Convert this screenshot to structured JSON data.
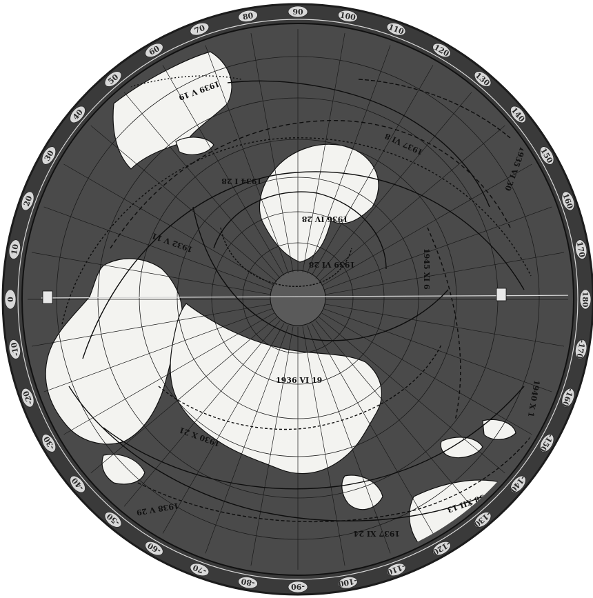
{
  "map": {
    "colors": {
      "ocean": "#4a4a4a",
      "land": "#f3f3f0",
      "bezel": "#3a3a3a",
      "bezel_ticks": "#d8d8d8",
      "path": "#0d0d0d",
      "grid": "#222222"
    },
    "rim_labels": [
      {
        "text": "0",
        "angle": 180
      },
      {
        "text": "-10",
        "angle": 170
      },
      {
        "text": "-20",
        "angle": 160
      },
      {
        "text": "-30",
        "angle": 150
      },
      {
        "text": "-40",
        "angle": 140
      },
      {
        "text": "-50",
        "angle": 130
      },
      {
        "text": "-60",
        "angle": 120
      },
      {
        "text": "-70",
        "angle": 110
      },
      {
        "text": "-80",
        "angle": 100
      },
      {
        "text": "-90",
        "angle": 90
      },
      {
        "text": "-100",
        "angle": 80
      },
      {
        "text": "-110",
        "angle": 70
      },
      {
        "text": "-120",
        "angle": 60
      },
      {
        "text": "-130",
        "angle": 50
      },
      {
        "text": "-140",
        "angle": 40
      },
      {
        "text": "-150",
        "angle": 30
      },
      {
        "text": "-160",
        "angle": 20
      },
      {
        "text": "-170",
        "angle": 10
      },
      {
        "text": "180",
        "angle": 0
      },
      {
        "text": "170",
        "angle": -10
      },
      {
        "text": "160",
        "angle": -20
      },
      {
        "text": "150",
        "angle": -30
      },
      {
        "text": "140",
        "angle": -40
      },
      {
        "text": "130",
        "angle": -50
      },
      {
        "text": "120",
        "angle": -60
      },
      {
        "text": "110",
        "angle": -70
      },
      {
        "text": "100",
        "angle": -80
      },
      {
        "text": "90",
        "angle": -90
      },
      {
        "text": "80",
        "angle": -100
      },
      {
        "text": "70",
        "angle": -110
      },
      {
        "text": "60",
        "angle": -120
      },
      {
        "text": "50",
        "angle": -130
      },
      {
        "text": "40",
        "angle": -140
      },
      {
        "text": "30",
        "angle": -150
      },
      {
        "text": "20",
        "angle": -160
      },
      {
        "text": "10",
        "angle": -170
      }
    ],
    "path_labels": [
      "1936 VI 19",
      "1938 XII 13",
      "1937 XI 24",
      "1938 V 29",
      "1934 I 28",
      "1939 V 19",
      "1936 IV 28",
      "1945 XI 6",
      "1939 VI 28",
      "1937 VI 8",
      "1932 V 11",
      "1930 X 21",
      "1935 VI 30",
      "1940 X 1"
    ]
  }
}
